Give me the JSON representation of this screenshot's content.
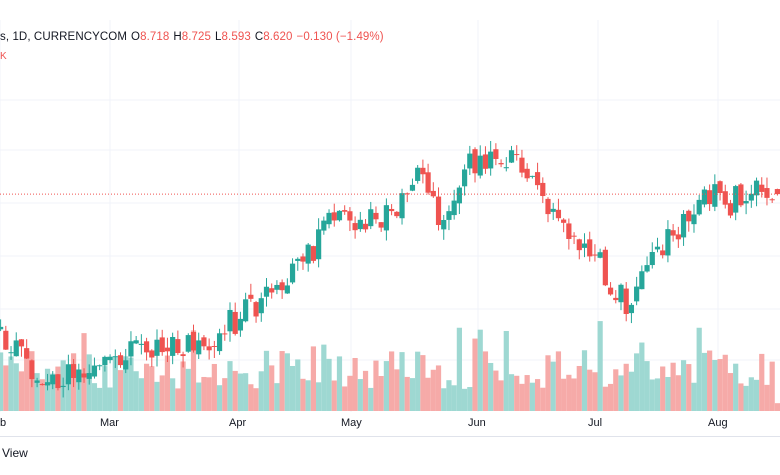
{
  "legend": {
    "prefix": "s, 1D, CURRENCYCOM",
    "o_label": "O",
    "o_value": "8.718",
    "h_label": "H",
    "h_value": "8.725",
    "l_label": "L",
    "l_value": "8.593",
    "c_label": "C",
    "c_value": "8.620",
    "change": "−0.130 (−1.49%)"
  },
  "corner_mark": "K",
  "footer": {
    "brand": "View"
  },
  "colors": {
    "up": "#26a69a",
    "down": "#ef5350",
    "up_volume": "#9ed8d2",
    "down_volume": "#f6aaa8",
    "grid": "#f0f3fa",
    "price_line": "#ef5350",
    "axis_text": "#131722"
  },
  "chart_data": {
    "type": "candlestick",
    "x_axis_labels": [
      "b",
      "Mar",
      "Apr",
      "May",
      "Jun",
      "Jul",
      "Aug"
    ],
    "last_close": 8.62,
    "grid": true,
    "price_range": [
      4.5,
      11.3
    ],
    "volume_range": [
      0,
      100
    ],
    "ohlc_close_path": [
      [
        0,
        6.0
      ],
      [
        5,
        5.4
      ],
      [
        10,
        5.05
      ],
      [
        15,
        5.25
      ],
      [
        20,
        5.45
      ],
      [
        25,
        5.55
      ],
      [
        30,
        5.75
      ],
      [
        35,
        5.65
      ],
      [
        40,
        5.85
      ],
      [
        45,
        6.2
      ],
      [
        50,
        6.6
      ],
      [
        55,
        7.05
      ],
      [
        60,
        7.55
      ],
      [
        65,
        8.45
      ],
      [
        70,
        8.0
      ],
      [
        75,
        8.3
      ],
      [
        80,
        8.9
      ],
      [
        85,
        8.1
      ],
      [
        90,
        9.2
      ],
      [
        95,
        9.45
      ],
      [
        100,
        9.25
      ],
      [
        105,
        8.45
      ],
      [
        110,
        7.65
      ],
      [
        115,
        7.25
      ],
      [
        120,
        6.5
      ],
      [
        125,
        7.35
      ],
      [
        130,
        7.95
      ],
      [
        135,
        8.7
      ],
      [
        140,
        8.4
      ],
      [
        145,
        8.95
      ],
      [
        149,
        8.62
      ]
    ],
    "series": [
      {
        "name": "Price",
        "type": "candlestick"
      },
      {
        "name": "Volume",
        "type": "histogram"
      }
    ]
  }
}
